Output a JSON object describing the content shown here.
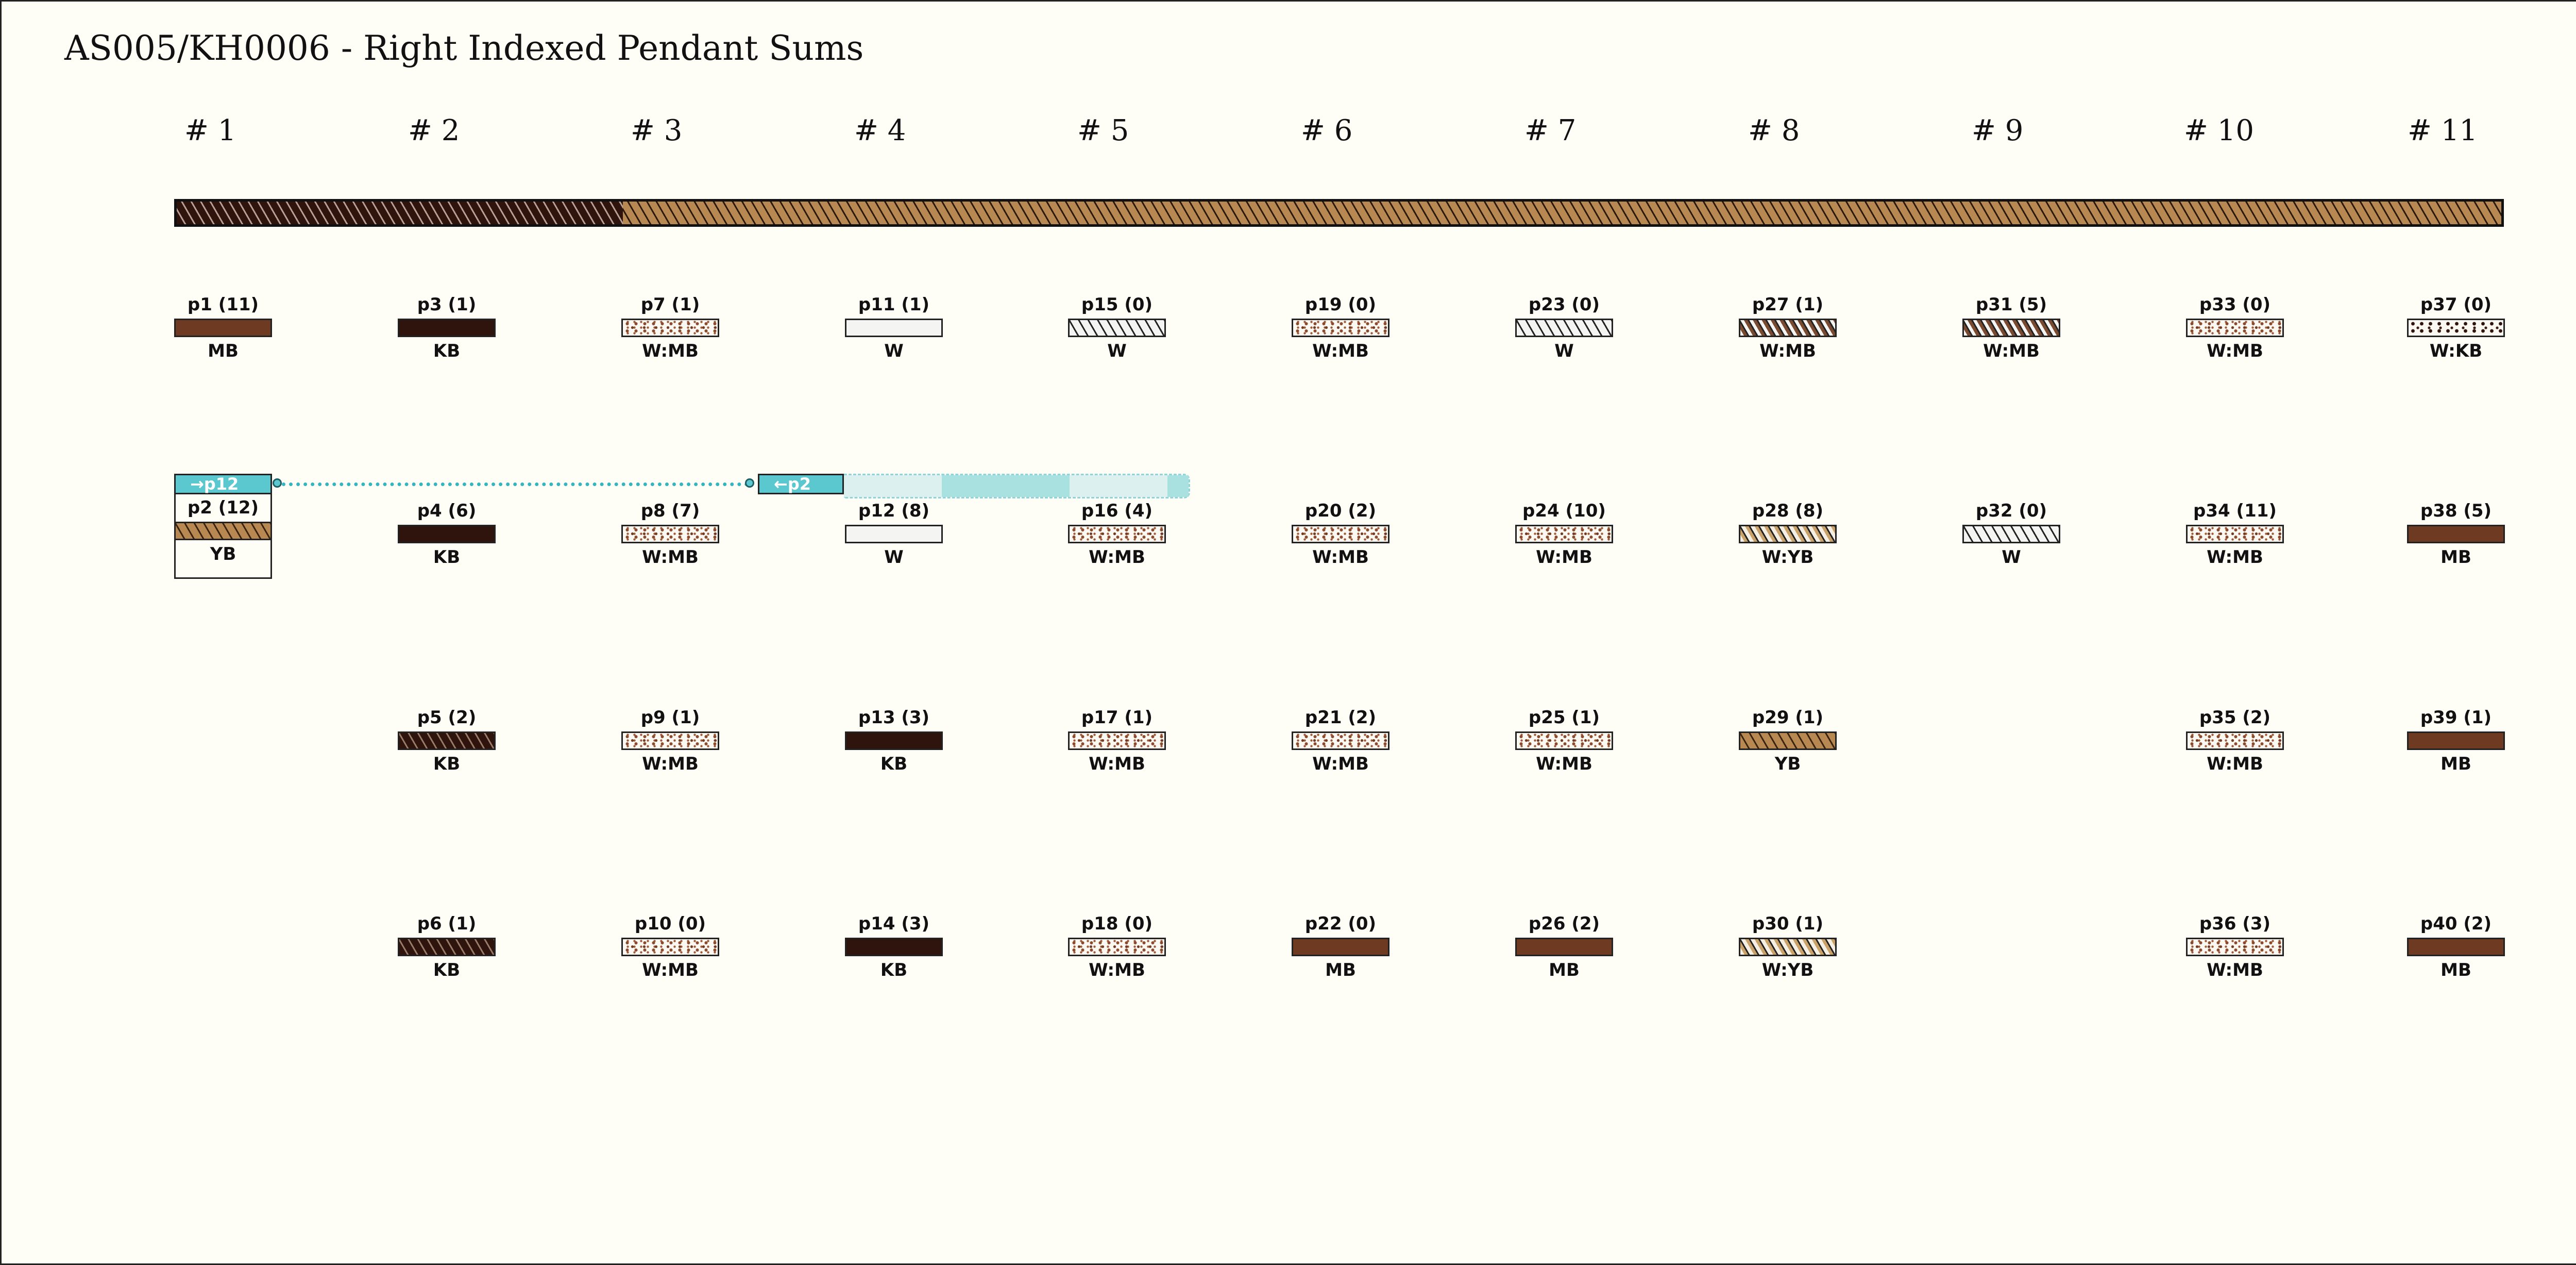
{
  "title": "AS005/KH0006 - Right Indexed Pendant Sums",
  "columns": [
    "# 1",
    "# 2",
    "# 3",
    "# 4",
    "# 5",
    "# 6",
    "# 7",
    "# 8",
    "# 9",
    "# 10",
    "# 11"
  ],
  "main_cord": {
    "segments": [
      {
        "color": "KB",
        "style": "striped"
      },
      {
        "color": "YB",
        "style": "striped"
      }
    ]
  },
  "colors": {
    "MB": "#6e3a22",
    "KB": "#2f140d",
    "W": "#f4f4f2",
    "YB": "#b88852",
    "index_tag": "#5bc8cf",
    "background": "#fefdf6"
  },
  "pendants": [
    {
      "label": "p1 (11)",
      "color": "MB",
      "fill": "MB",
      "col": 1,
      "row": 1
    },
    {
      "label": "p2 (12)",
      "color": "YB",
      "fill": "s-YB",
      "col": 1,
      "row": 2
    },
    {
      "label": "p3 (1)",
      "color": "KB",
      "fill": "KB",
      "col": 2,
      "row": 1
    },
    {
      "label": "p4 (6)",
      "color": "KB",
      "fill": "KB",
      "col": 2,
      "row": 2
    },
    {
      "label": "p5 (2)",
      "color": "KB",
      "fill": "s-KB",
      "col": 2,
      "row": 3
    },
    {
      "label": "p6 (1)",
      "color": "KB",
      "fill": "s-KB",
      "col": 2,
      "row": 4
    },
    {
      "label": "p7 (1)",
      "color": "W:MB",
      "fill": "WMB",
      "col": 3,
      "row": 1
    },
    {
      "label": "p8 (7)",
      "color": "W:MB",
      "fill": "WMB",
      "col": 3,
      "row": 2
    },
    {
      "label": "p9 (1)",
      "color": "W:MB",
      "fill": "WMB",
      "col": 3,
      "row": 3
    },
    {
      "label": "p10 (0)",
      "color": "W:MB",
      "fill": "WMB",
      "col": 3,
      "row": 4
    },
    {
      "label": "p11 (1)",
      "color": "W",
      "fill": "W",
      "col": 4,
      "row": 1
    },
    {
      "label": "p12 (8)",
      "color": "W",
      "fill": "W",
      "col": 4,
      "row": 2
    },
    {
      "label": "p13 (3)",
      "color": "KB",
      "fill": "KB",
      "col": 4,
      "row": 3
    },
    {
      "label": "p14 (3)",
      "color": "KB",
      "fill": "KB",
      "col": 4,
      "row": 4
    },
    {
      "label": "p15 (0)",
      "color": "W",
      "fill": "s-W",
      "col": 5,
      "row": 1
    },
    {
      "label": "p16 (4)",
      "color": "W:MB",
      "fill": "WMB",
      "col": 5,
      "row": 2
    },
    {
      "label": "p17 (1)",
      "color": "W:MB",
      "fill": "WMB",
      "col": 5,
      "row": 3
    },
    {
      "label": "p18 (0)",
      "color": "W:MB",
      "fill": "WMB",
      "col": 5,
      "row": 4
    },
    {
      "label": "p19 (0)",
      "color": "W:MB",
      "fill": "WMB",
      "col": 6,
      "row": 1
    },
    {
      "label": "p20 (2)",
      "color": "W:MB",
      "fill": "WMB",
      "col": 6,
      "row": 2
    },
    {
      "label": "p21 (2)",
      "color": "W:MB",
      "fill": "WMB",
      "col": 6,
      "row": 3
    },
    {
      "label": "p22 (0)",
      "color": "MB",
      "fill": "MB",
      "col": 6,
      "row": 4
    },
    {
      "label": "p23 (0)",
      "color": "W",
      "fill": "s-W",
      "col": 7,
      "row": 1
    },
    {
      "label": "p24 (10)",
      "color": "W:MB",
      "fill": "WMB",
      "col": 7,
      "row": 2
    },
    {
      "label": "p25 (1)",
      "color": "W:MB",
      "fill": "WMB",
      "col": 7,
      "row": 3
    },
    {
      "label": "p26 (2)",
      "color": "MB",
      "fill": "MB",
      "col": 7,
      "row": 4
    },
    {
      "label": "p27 (1)",
      "color": "W:MB",
      "fill": "s-WMB",
      "col": 8,
      "row": 1
    },
    {
      "label": "p28 (8)",
      "color": "W:YB",
      "fill": "s-WYB",
      "col": 8,
      "row": 2
    },
    {
      "label": "p29 (1)",
      "color": "YB",
      "fill": "s-YB",
      "col": 8,
      "row": 3
    },
    {
      "label": "p30 (1)",
      "color": "W:YB",
      "fill": "s-WYB",
      "col": 8,
      "row": 4
    },
    {
      "label": "p31 (5)",
      "color": "W:MB",
      "fill": "s-WMB",
      "col": 9,
      "row": 1
    },
    {
      "label": "p32 (0)",
      "color": "W",
      "fill": "s-W",
      "col": 9,
      "row": 2
    },
    {
      "label": "p33 (0)",
      "color": "W:MB",
      "fill": "WMB",
      "col": 10,
      "row": 1
    },
    {
      "label": "p34 (11)",
      "color": "W:MB",
      "fill": "WMB",
      "col": 10,
      "row": 2
    },
    {
      "label": "p35 (2)",
      "color": "W:MB",
      "fill": "WMB",
      "col": 10,
      "row": 3
    },
    {
      "label": "p36 (3)",
      "color": "W:MB",
      "fill": "WMB",
      "col": 10,
      "row": 4
    },
    {
      "label": "p37 (0)",
      "color": "W:KB",
      "fill": "WKB",
      "col": 11,
      "row": 1
    },
    {
      "label": "p38 (5)",
      "color": "MB",
      "fill": "MB",
      "col": 11,
      "row": 2
    },
    {
      "label": "p39 (1)",
      "color": "MB",
      "fill": "MB",
      "col": 11,
      "row": 3
    },
    {
      "label": "p40 (2)",
      "color": "MB",
      "fill": "MB",
      "col": 11,
      "row": 4
    }
  ],
  "index_links": [
    {
      "from": "p2",
      "to": "p12",
      "from_tag": "→p12",
      "to_tag": "←p2"
    }
  ]
}
